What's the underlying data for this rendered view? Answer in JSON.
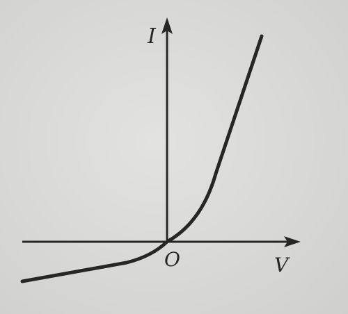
{
  "figure": {
    "y_axis_label": "I",
    "x_axis_label": "V",
    "origin_label": "O"
  },
  "colors": {
    "ink": "#262626",
    "paper": "#dcdcda"
  }
}
